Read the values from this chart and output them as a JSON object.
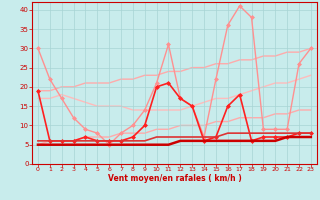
{
  "xlabel": "Vent moyen/en rafales ( km/h )",
  "xlim": [
    -0.5,
    23.5
  ],
  "ylim": [
    0,
    42
  ],
  "yticks": [
    0,
    5,
    10,
    15,
    20,
    25,
    30,
    35,
    40
  ],
  "xticks": [
    0,
    1,
    2,
    3,
    4,
    5,
    6,
    7,
    8,
    9,
    10,
    11,
    12,
    13,
    14,
    15,
    16,
    17,
    18,
    19,
    20,
    21,
    22,
    23
  ],
  "background_color": "#c8ecec",
  "grid_color": "#a8d4d4",
  "lines": [
    {
      "x": [
        0,
        1,
        2,
        3,
        4,
        5,
        6,
        7,
        8,
        9,
        10,
        11,
        12,
        13,
        14,
        15,
        16,
        17,
        18,
        19,
        20,
        21,
        22,
        23
      ],
      "y": [
        19,
        19,
        20,
        20,
        21,
        21,
        21,
        22,
        22,
        23,
        23,
        24,
        24,
        25,
        25,
        26,
        26,
        27,
        27,
        28,
        28,
        29,
        29,
        30
      ],
      "color": "#ffaaaa",
      "lw": 1.0,
      "marker": null,
      "ms": 0,
      "zorder": 1
    },
    {
      "x": [
        0,
        1,
        2,
        3,
        4,
        5,
        6,
        7,
        8,
        9,
        10,
        11,
        12,
        13,
        14,
        15,
        16,
        17,
        18,
        19,
        20,
        21,
        22,
        23
      ],
      "y": [
        5,
        6,
        6,
        6,
        7,
        7,
        7,
        8,
        8,
        8,
        9,
        9,
        10,
        10,
        10,
        11,
        11,
        12,
        12,
        12,
        13,
        13,
        14,
        14
      ],
      "color": "#ffaaaa",
      "lw": 1.0,
      "marker": null,
      "ms": 0,
      "zorder": 1
    },
    {
      "x": [
        0,
        1,
        2,
        3,
        4,
        5,
        6,
        7,
        8,
        9,
        10,
        11,
        12,
        13,
        14,
        15,
        16,
        17,
        18,
        19,
        20,
        21,
        22,
        23
      ],
      "y": [
        30,
        22,
        17,
        12,
        9,
        8,
        5,
        8,
        10,
        14,
        21,
        31,
        17,
        15,
        7,
        22,
        36,
        41,
        38,
        9,
        9,
        9,
        26,
        30
      ],
      "color": "#ff9090",
      "lw": 1.0,
      "marker": "D",
      "ms": 2.0,
      "zorder": 2
    },
    {
      "x": [
        0,
        1,
        2,
        3,
        4,
        5,
        6,
        7,
        8,
        9,
        10,
        11,
        12,
        13,
        14,
        15,
        16,
        17,
        18,
        19,
        20,
        21,
        22,
        23
      ],
      "y": [
        17,
        17,
        18,
        17,
        16,
        15,
        15,
        15,
        14,
        14,
        14,
        14,
        14,
        15,
        16,
        17,
        17,
        18,
        19,
        20,
        21,
        21,
        22,
        23
      ],
      "color": "#ffbbbb",
      "lw": 1.0,
      "marker": null,
      "ms": 0,
      "zorder": 1
    },
    {
      "x": [
        0,
        1,
        2,
        3,
        4,
        5,
        6,
        7,
        8,
        9,
        10,
        11,
        12,
        13,
        14,
        15,
        16,
        17,
        18,
        19,
        20,
        21,
        22,
        23
      ],
      "y": [
        19,
        6,
        6,
        6,
        7,
        6,
        6,
        6,
        7,
        10,
        20,
        21,
        17,
        15,
        6,
        7,
        15,
        18,
        6,
        7,
        7,
        7,
        8,
        8
      ],
      "color": "#ff2020",
      "lw": 1.2,
      "marker": "D",
      "ms": 2.0,
      "zorder": 3
    },
    {
      "x": [
        0,
        1,
        2,
        3,
        4,
        5,
        6,
        7,
        8,
        9,
        10,
        11,
        12,
        13,
        14,
        15,
        16,
        17,
        18,
        19,
        20,
        21,
        22,
        23
      ],
      "y": [
        5,
        5,
        5,
        5,
        5,
        5,
        5,
        5,
        5,
        5,
        5,
        5,
        6,
        6,
        6,
        6,
        6,
        6,
        6,
        6,
        6,
        7,
        7,
        7
      ],
      "color": "#cc0000",
      "lw": 1.8,
      "marker": null,
      "ms": 0,
      "zorder": 4
    },
    {
      "x": [
        0,
        1,
        2,
        3,
        4,
        5,
        6,
        7,
        8,
        9,
        10,
        11,
        12,
        13,
        14,
        15,
        16,
        17,
        18,
        19,
        20,
        21,
        22,
        23
      ],
      "y": [
        6,
        6,
        6,
        6,
        6,
        6,
        6,
        6,
        6,
        6,
        7,
        7,
        7,
        7,
        7,
        7,
        8,
        8,
        8,
        8,
        8,
        8,
        8,
        8
      ],
      "color": "#dd3333",
      "lw": 1.2,
      "marker": null,
      "ms": 0,
      "zorder": 3
    }
  ]
}
